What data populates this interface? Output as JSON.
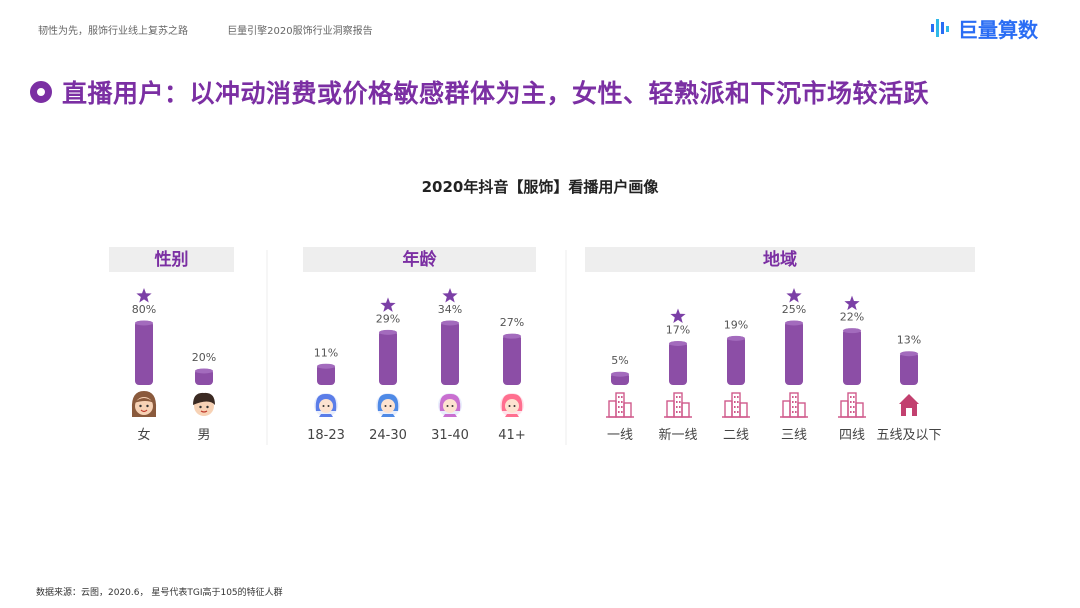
{
  "header": {
    "left_text_1": "韧性为先，服饰行业线上复苏之路",
    "left_text_2": "巨量引擎2020服饰行业洞察报告",
    "logo_text": "巨量算数"
  },
  "page_title": "直播用户：以冲动消费或价格敏感群体为主，女性、轻熟派和下沉市场较活跃",
  "footer": "数据来源：云图，2020.6， 星号代表TGI高于105的特征人群",
  "colors": {
    "accent": "#7b2fa3",
    "bar": "#8c4ea6",
    "star": "#7b3fa6",
    "header_bg": "#eeeeee"
  },
  "chart_data": {
    "type": "bar",
    "title": "2020年抖音【服饰】看播用户画像",
    "value_suffix": "%",
    "groups": [
      {
        "name": "性别",
        "categories": [
          "女",
          "男"
        ],
        "values": [
          80,
          20
        ],
        "starred": [
          true,
          false
        ],
        "icons": [
          "female-face-icon",
          "male-face-icon"
        ]
      },
      {
        "name": "年龄",
        "categories": [
          "18-23",
          "24-30",
          "31-40",
          "41+"
        ],
        "values": [
          11,
          29,
          34,
          27
        ],
        "starred": [
          false,
          true,
          true,
          false
        ],
        "icons": [
          "girl-avatar-icon",
          "young-woman-avatar-icon",
          "woman-avatar-icon",
          "pink-avatar-icon"
        ]
      },
      {
        "name": "地域",
        "categories": [
          "一线",
          "新一线",
          "二线",
          "三线",
          "四线",
          "五线及以下"
        ],
        "values": [
          5,
          17,
          19,
          25,
          22,
          13
        ],
        "starred": [
          false,
          true,
          false,
          true,
          true,
          false
        ],
        "icons": [
          "city-building-icon",
          "city-building-icon",
          "city-building-icon",
          "city-building-icon",
          "city-building-icon",
          "house-icon"
        ]
      }
    ]
  }
}
